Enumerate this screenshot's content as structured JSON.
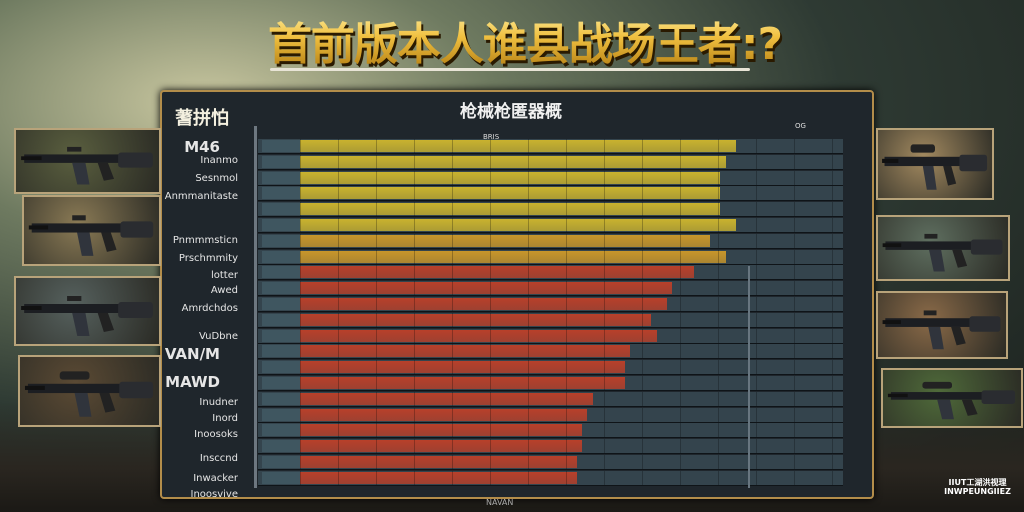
{
  "title": "首前版本人谁县战场王者:?",
  "panel": {
    "title": "枪械枪匿器概",
    "left_title": "蓍拼怕",
    "header_label": "BRIS",
    "header_right": "OG"
  },
  "weapon_labels": [
    {
      "text": "M46",
      "big": true
    },
    {
      "text": "Inanmo"
    },
    {
      "text": "Sesnmol"
    },
    {
      "text": "Anmmanitaste"
    },
    {
      "text": "Pnmmmsticn"
    },
    {
      "text": "Prschmmity"
    },
    {
      "text": "lotter"
    },
    {
      "text": "Awed"
    },
    {
      "text": "Amrdchdos"
    },
    {
      "text": "VuDbne"
    },
    {
      "text": "VAN/M",
      "big": true
    },
    {
      "text": "MAWD",
      "big": true
    },
    {
      "text": "Inudner"
    },
    {
      "text": "Inord"
    },
    {
      "text": "Inoosoks"
    },
    {
      "text": "Insccnd"
    },
    {
      "text": "Inwacker"
    },
    {
      "text": "Inoosvive"
    }
  ],
  "colors": {
    "yellow": "#c9b22e",
    "orange": "#c8962a",
    "red": "#b8402a",
    "accent_red": "#e03a2a",
    "border_gold": "#b38d4a"
  },
  "rows": [
    {
      "level": 0.82,
      "color": "yellow"
    },
    {
      "level": 0.8,
      "color": "yellow"
    },
    {
      "level": 0.79,
      "color": "yellow"
    },
    {
      "level": 0.79,
      "color": "yellow"
    },
    {
      "level": 0.79,
      "color": "yellow"
    },
    {
      "level": 0.82,
      "color": "yellow"
    },
    {
      "level": 0.77,
      "color": "orange"
    },
    {
      "level": 0.8,
      "color": "orange"
    },
    {
      "level": 0.74,
      "color": "red"
    },
    {
      "level": 0.7,
      "color": "red"
    },
    {
      "level": 0.69,
      "color": "red"
    },
    {
      "level": 0.66,
      "color": "red"
    },
    {
      "level": 0.67,
      "color": "red"
    },
    {
      "level": 0.62,
      "color": "red"
    },
    {
      "level": 0.61,
      "color": "red"
    },
    {
      "level": 0.61,
      "color": "red"
    },
    {
      "level": 0.55,
      "color": "red"
    },
    {
      "level": 0.54,
      "color": "red"
    },
    {
      "level": 0.53,
      "color": "red"
    },
    {
      "level": 0.53,
      "color": "red"
    },
    {
      "level": 0.52,
      "color": "red"
    },
    {
      "level": 0.52,
      "color": "red"
    }
  ],
  "left_images": [
    "assault-rifle",
    "assault-rifle",
    "carbine",
    "rifle"
  ],
  "right_images": [
    "rifle",
    "assault-rifle",
    "carbine",
    "sniper-rifle"
  ],
  "footer": "NAVAN",
  "logo": {
    "line1": "IIUT工湖洪视理",
    "line2": "INWPEUNGIIEZ"
  }
}
